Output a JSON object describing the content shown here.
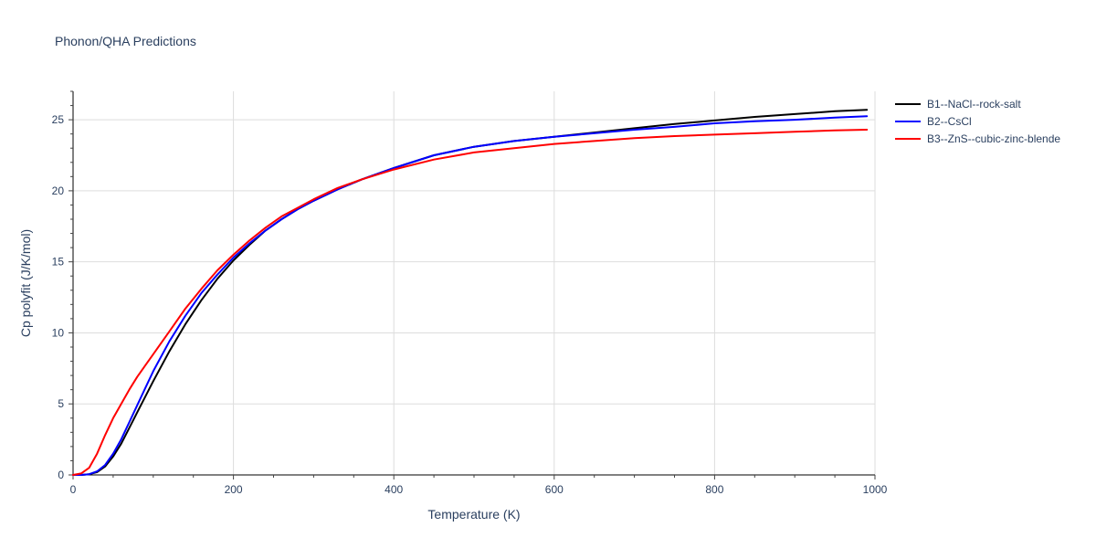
{
  "chart_data": {
    "type": "line",
    "title": "Phonon/QHA Predictions",
    "xlabel": "Temperature (K)",
    "ylabel": "Cp polyfit (J/K/mol)",
    "xlim": [
      0,
      1000
    ],
    "ylim": [
      0,
      27
    ],
    "x_ticks": [
      0,
      200,
      400,
      600,
      800,
      1000
    ],
    "y_ticks": [
      0,
      5,
      10,
      15,
      20,
      25
    ],
    "grid": true,
    "legend": "right",
    "series": [
      {
        "name": "B1--NaCl--rock-salt",
        "color": "#000000",
        "x": [
          0,
          10,
          20,
          30,
          40,
          50,
          60,
          70,
          80,
          90,
          100,
          120,
          140,
          160,
          180,
          200,
          220,
          240,
          260,
          280,
          300,
          330,
          360,
          400,
          450,
          500,
          550,
          600,
          650,
          700,
          750,
          800,
          850,
          900,
          950,
          990
        ],
        "y": [
          0,
          0,
          0.05,
          0.2,
          0.6,
          1.3,
          2.2,
          3.3,
          4.4,
          5.5,
          6.6,
          8.7,
          10.6,
          12.3,
          13.8,
          15.1,
          16.2,
          17.2,
          18.0,
          18.7,
          19.3,
          20.1,
          20.8,
          21.6,
          22.5,
          23.1,
          23.5,
          23.8,
          24.1,
          24.4,
          24.7,
          24.95,
          25.2,
          25.4,
          25.6,
          25.7
        ]
      },
      {
        "name": "B2--CsCl",
        "color": "#0000ff",
        "x": [
          0,
          10,
          20,
          30,
          40,
          50,
          60,
          70,
          80,
          90,
          100,
          120,
          140,
          160,
          180,
          200,
          220,
          240,
          260,
          280,
          300,
          330,
          360,
          400,
          450,
          500,
          550,
          600,
          650,
          700,
          750,
          800,
          850,
          900,
          950,
          990
        ],
        "y": [
          0,
          0,
          0.05,
          0.25,
          0.7,
          1.5,
          2.5,
          3.7,
          4.9,
          6.1,
          7.3,
          9.4,
          11.2,
          12.8,
          14.1,
          15.3,
          16.3,
          17.2,
          18.0,
          18.7,
          19.3,
          20.1,
          20.8,
          21.6,
          22.5,
          23.1,
          23.5,
          23.8,
          24.05,
          24.3,
          24.5,
          24.75,
          24.9,
          25.0,
          25.15,
          25.25
        ]
      },
      {
        "name": "B3--ZnS--cubic-zinc-blende",
        "color": "#ff0000",
        "x": [
          0,
          10,
          20,
          30,
          40,
          50,
          60,
          70,
          80,
          90,
          100,
          120,
          140,
          160,
          180,
          200,
          220,
          240,
          260,
          280,
          300,
          330,
          360,
          400,
          450,
          500,
          550,
          600,
          650,
          700,
          750,
          800,
          850,
          900,
          950,
          990
        ],
        "y": [
          0,
          0.1,
          0.5,
          1.5,
          2.8,
          4.0,
          5.0,
          6.0,
          6.9,
          7.7,
          8.5,
          10.1,
          11.7,
          13.1,
          14.4,
          15.5,
          16.5,
          17.4,
          18.2,
          18.8,
          19.4,
          20.2,
          20.8,
          21.5,
          22.2,
          22.7,
          23.0,
          23.3,
          23.5,
          23.7,
          23.85,
          23.95,
          24.05,
          24.15,
          24.25,
          24.3
        ]
      }
    ]
  }
}
